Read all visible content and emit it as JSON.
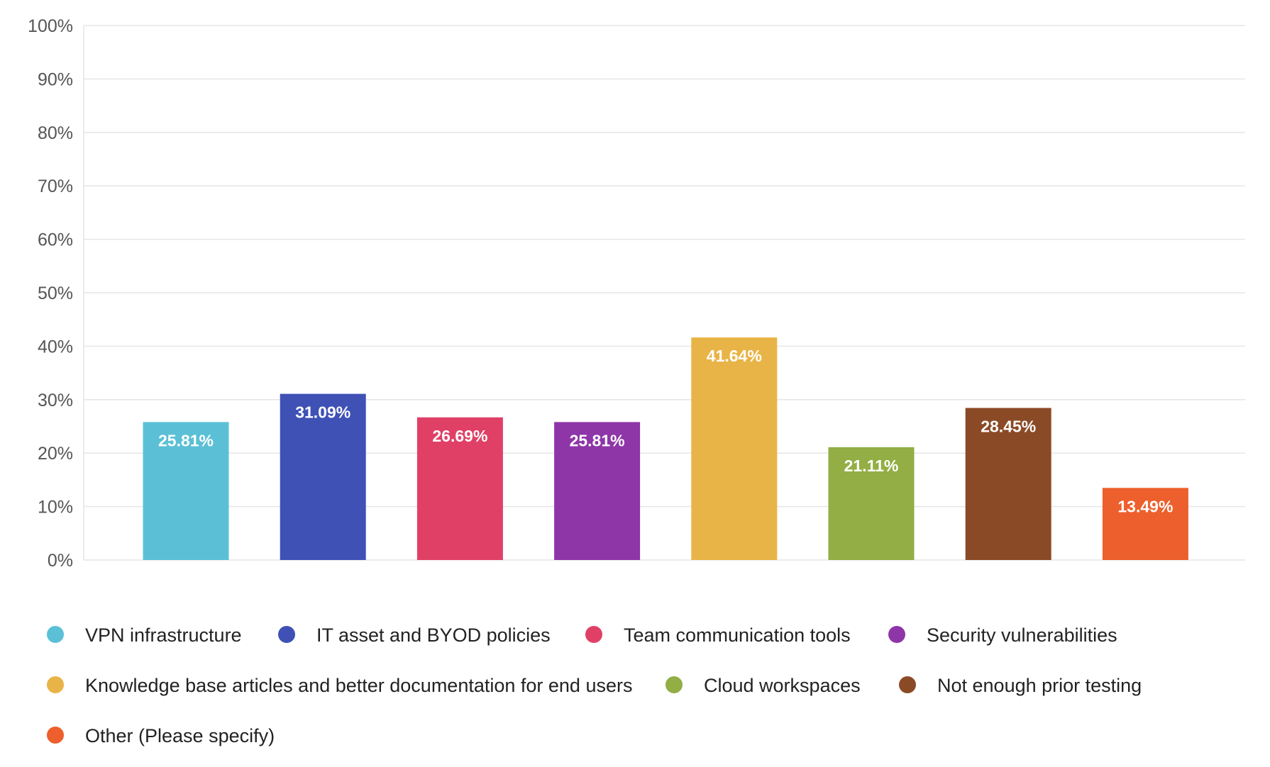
{
  "chart_data": {
    "type": "bar",
    "title": "",
    "xlabel": "",
    "ylabel": "",
    "ylim": [
      0,
      100
    ],
    "y_ticks": [
      "0%",
      "10%",
      "20%",
      "30%",
      "40%",
      "50%",
      "60%",
      "70%",
      "80%",
      "90%",
      "100%"
    ],
    "grid": true,
    "legend_position": "bottom",
    "categories": [
      "VPN infrastructure",
      "IT asset and BYOD policies",
      "Team communication tools",
      "Security vulnerabilities",
      "Knowledge base articles and better documentation for end users",
      "Cloud workspaces",
      "Not enough prior testing",
      "Other (Please specify)"
    ],
    "values": [
      25.81,
      31.09,
      26.69,
      25.81,
      41.64,
      21.11,
      28.45,
      13.49
    ],
    "value_labels": [
      "25.81%",
      "31.09%",
      "26.69%",
      "25.81%",
      "41.64%",
      "21.11%",
      "28.45%",
      "13.49%"
    ],
    "colors": [
      "#5bc0d6",
      "#3f51b5",
      "#e04066",
      "#8e35a8",
      "#e9b447",
      "#92ae44",
      "#8b4a26",
      "#ed5f2c"
    ]
  }
}
